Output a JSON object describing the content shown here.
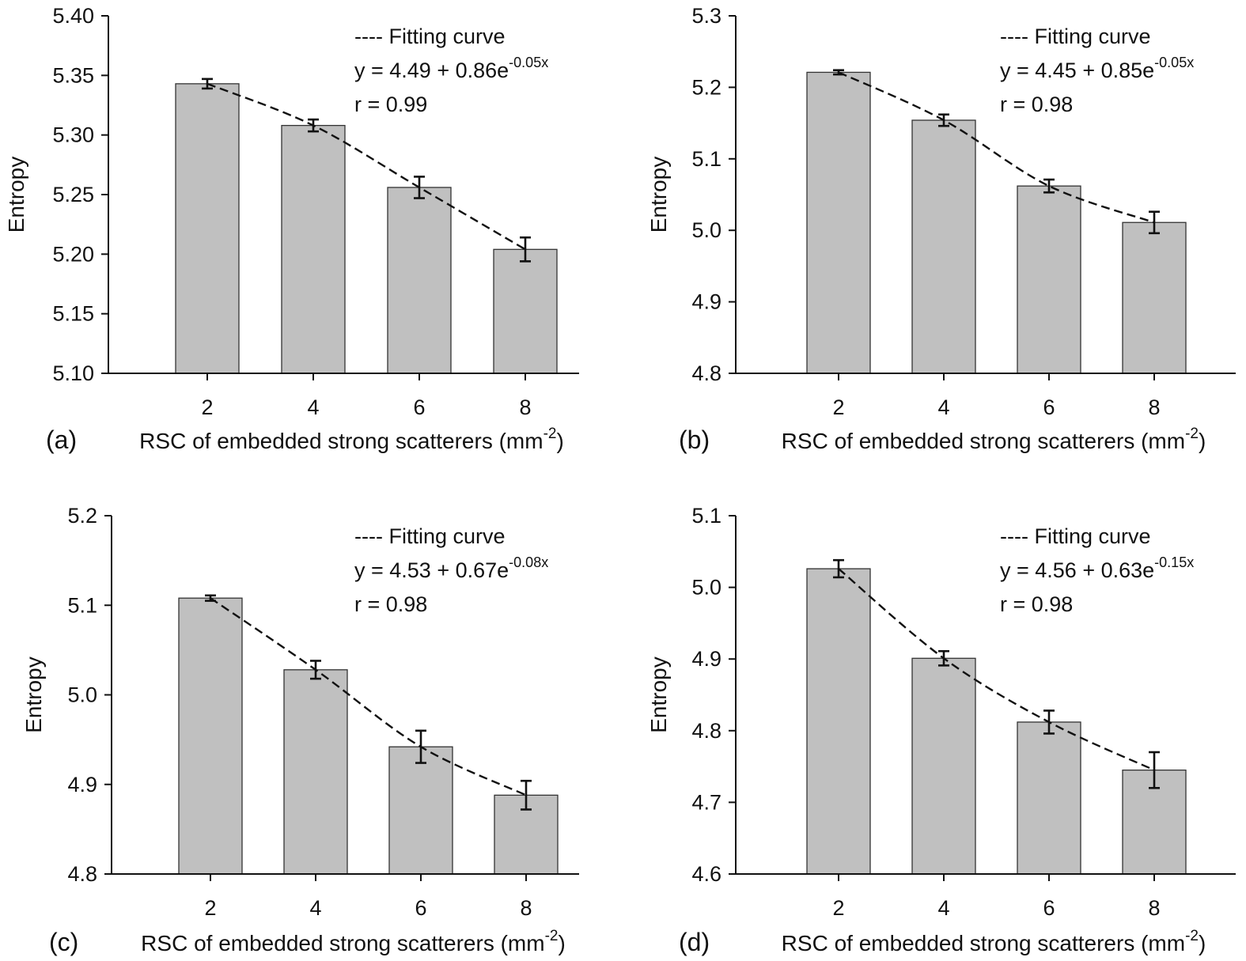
{
  "chart_data": [
    {
      "type": "bar",
      "panel_label": "(a)",
      "categories": [
        "2",
        "4",
        "6",
        "8"
      ],
      "x": [
        2,
        4,
        6,
        8
      ],
      "values": [
        5.343,
        5.308,
        5.256,
        5.204
      ],
      "errors": [
        0.004,
        0.005,
        0.009,
        0.01
      ],
      "fit_curve": {
        "label": "---- Fitting curve",
        "equation_base": "y = 4.49 + 0.86e",
        "equation_exp": "-0.05x",
        "r_text": "r = 0.99",
        "a": 4.49,
        "b": 0.86,
        "k": 0.05
      },
      "xlabel_base": "RSC of embedded strong scatterers (mm",
      "xlabel_exp": "-2",
      "xlabel_end": ")",
      "ylabel": "Entropy",
      "ylim": [
        5.1,
        5.4
      ],
      "yticks": [
        "5.10",
        "5.15",
        "5.20",
        "5.25",
        "5.30",
        "5.35",
        "5.40"
      ]
    },
    {
      "type": "bar",
      "panel_label": "(b)",
      "categories": [
        "2",
        "4",
        "6",
        "8"
      ],
      "x": [
        2,
        4,
        6,
        8
      ],
      "values": [
        5.221,
        5.154,
        5.062,
        5.011
      ],
      "errors": [
        0.003,
        0.008,
        0.009,
        0.015
      ],
      "fit_curve": {
        "label": "---- Fitting curve",
        "equation_base": "y = 4.45 + 0.85e",
        "equation_exp": "-0.05x",
        "r_text": "r = 0.98",
        "a": 4.45,
        "b": 0.85,
        "k": 0.05
      },
      "xlabel_base": "RSC of embedded strong scatterers (mm",
      "xlabel_exp": "-2",
      "xlabel_end": ")",
      "ylabel": "Entropy",
      "ylim": [
        4.8,
        5.3
      ],
      "yticks": [
        "4.8",
        "4.9",
        "5.0",
        "5.1",
        "5.2",
        "5.3"
      ]
    },
    {
      "type": "bar",
      "panel_label": "(c)",
      "categories": [
        "2",
        "4",
        "6",
        "8"
      ],
      "x": [
        2,
        4,
        6,
        8
      ],
      "values": [
        5.108,
        5.028,
        4.942,
        4.888
      ],
      "errors": [
        0.003,
        0.01,
        0.018,
        0.016
      ],
      "fit_curve": {
        "label": "---- Fitting curve",
        "equation_base": "y = 4.53 + 0.67e",
        "equation_exp": "-0.08x",
        "r_text": "r = 0.98",
        "a": 4.53,
        "b": 0.67,
        "k": 0.08
      },
      "xlabel_base": "RSC of embedded strong scatterers (mm",
      "xlabel_exp": "-2",
      "xlabel_end": ")",
      "ylabel": "Entropy",
      "ylim": [
        4.8,
        5.2
      ],
      "yticks": [
        "4.8",
        "4.9",
        "5.0",
        "5.1",
        "5.2"
      ]
    },
    {
      "type": "bar",
      "panel_label": "(d)",
      "categories": [
        "2",
        "4",
        "6",
        "8"
      ],
      "x": [
        2,
        4,
        6,
        8
      ],
      "values": [
        5.026,
        4.901,
        4.812,
        4.745
      ],
      "errors": [
        0.012,
        0.01,
        0.016,
        0.025
      ],
      "fit_curve": {
        "label": "---- Fitting curve",
        "equation_base": "y = 4.56 + 0.63e",
        "equation_exp": "-0.15x",
        "r_text": "r = 0.98",
        "a": 4.56,
        "b": 0.63,
        "k": 0.15
      },
      "xlabel_base": "RSC of embedded strong scatterers (mm",
      "xlabel_exp": "-2",
      "xlabel_end": ")",
      "ylabel": "Entropy",
      "ylim": [
        4.6,
        5.1
      ],
      "yticks": [
        "4.6",
        "4.7",
        "4.8",
        "4.9",
        "5.0",
        "5.1"
      ]
    }
  ]
}
